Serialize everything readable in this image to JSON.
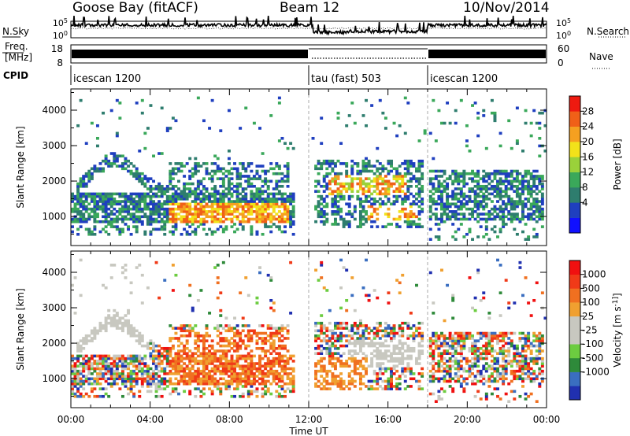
{
  "header": {
    "station": "Goose Bay (fitACF)",
    "beam": "Beam 12",
    "date": "10/Nov/2014"
  },
  "colors": {
    "power": [
      "#1010ff",
      "#1f3fbf",
      "#2e7d6e",
      "#3aa85a",
      "#9ad13a",
      "#f2e21a",
      "#f5a020",
      "#f06018",
      "#ee1a10"
    ],
    "velocity": [
      "#2030b0",
      "#3a6ec0",
      "#2e8a3a",
      "#6ccc40",
      "#c8c8c0",
      "#c8c8c0",
      "#f0a030",
      "#f07020",
      "#f03a18",
      "#f01010"
    ]
  },
  "chart_data": [
    {
      "type": "line",
      "name": "noise-panel",
      "left_label": "N.Sky",
      "right_label": "N.Search",
      "left_ticks": [
        "10^5",
        "10^0"
      ],
      "right_ticks": [
        "10^5",
        "10^0"
      ],
      "x_range": [
        "00:00",
        "24:00"
      ]
    },
    {
      "type": "line",
      "name": "freq-nave-panel",
      "left_label": "Freq. [MHz]",
      "right_label": "Nave",
      "left_ticks": [
        "18",
        "8"
      ],
      "right_ticks": [
        "60",
        "0"
      ],
      "segments": [
        {
          "start_h": 0,
          "end_h": 12,
          "style": "dense"
        },
        {
          "start_h": 12,
          "end_h": 18,
          "style": "sparse"
        },
        {
          "start_h": 18,
          "end_h": 24,
          "style": "dense"
        }
      ]
    },
    {
      "type": "table",
      "name": "cpid-panel",
      "label": "CPID",
      "programs": [
        {
          "name": "icescan 1200",
          "start_h": 0
        },
        {
          "name": "tau (fast) 503",
          "start_h": 12
        },
        {
          "name": "icescan 1200",
          "start_h": 18
        }
      ]
    },
    {
      "type": "heatmap",
      "name": "power-panel",
      "ylabel": "Slant Range [km]",
      "yticks": [
        1000,
        2000,
        3000,
        4000
      ],
      "ylim": [
        180,
        4600
      ],
      "colorbar_label": "Power [dB]",
      "colorbar_ticks": [
        "28",
        "24",
        "20",
        "16",
        "12",
        "8",
        "4"
      ]
    },
    {
      "type": "heatmap",
      "name": "velocity-panel",
      "ylabel": "Slant Range [km]",
      "yticks": [
        1000,
        2000,
        3000,
        4000
      ],
      "ylim": [
        180,
        4600
      ],
      "xlabel": "Time UT",
      "xticks": [
        "00:00",
        "04:00",
        "08:00",
        "12:00",
        "16:00",
        "20:00",
        "00:00"
      ],
      "colorbar_label": "Velocity [m s^-1]",
      "colorbar_ticks": [
        "1000",
        "500",
        "100",
        "25",
        "-25",
        "-100",
        "-500",
        "-1000"
      ]
    }
  ]
}
